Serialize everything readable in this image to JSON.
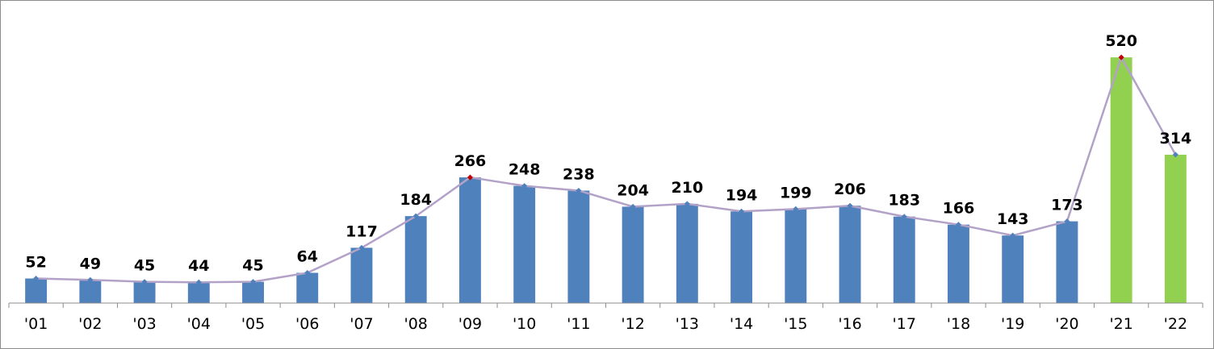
{
  "chart_data": {
    "type": "bar",
    "categories": [
      "'01",
      "'02",
      "'03",
      "'04",
      "'05",
      "'06",
      "'07",
      "'08",
      "'09",
      "'10",
      "'11",
      "'12",
      "'13",
      "'14",
      "'15",
      "'16",
      "'17",
      "'18",
      "'19",
      "'20",
      "'21",
      "'22"
    ],
    "series": [
      {
        "values": [
          52,
          49,
          45,
          44,
          45,
          64,
          117,
          184,
          266,
          248,
          238,
          204,
          210,
          194,
          199,
          206,
          183,
          166,
          143,
          173,
          520,
          314
        ],
        "line_overlay": true
      }
    ],
    "ylim": [
      0,
      580
    ],
    "title": "",
    "xlabel": "",
    "ylabel": "",
    "grid": false,
    "legend": "none",
    "highlighted_categories": [
      "'21",
      "'22"
    ],
    "colors": {
      "bar": "#4f81bd",
      "bar_highlight": "#92d050",
      "line": "#b3a2c7",
      "marker": "#4f81bd",
      "marker_peak": "#c00000",
      "axis": "#8c8c8c"
    }
  }
}
